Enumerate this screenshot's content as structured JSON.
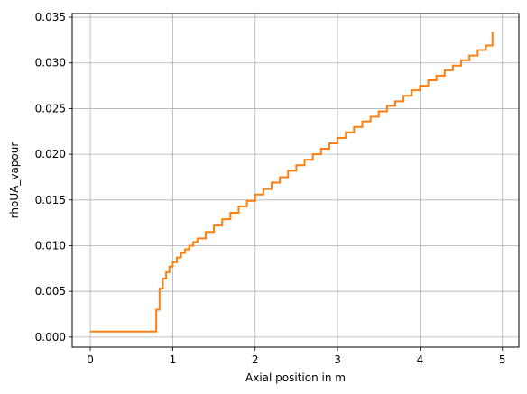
{
  "chart_data": {
    "type": "line",
    "title": "",
    "xlabel": "Axial position in m",
    "ylabel": "rhoUA_vapour",
    "xlim": [
      -0.22,
      5.2
    ],
    "ylim": [
      -0.0011,
      0.0354
    ],
    "xticks": [
      0,
      1,
      2,
      3,
      4,
      5
    ],
    "xtick_labels": [
      "0",
      "1",
      "2",
      "3",
      "4",
      "5"
    ],
    "yticks": [
      0.0,
      0.005,
      0.01,
      0.015,
      0.02,
      0.025,
      0.03,
      0.035
    ],
    "ytick_labels": [
      "0.000",
      "0.005",
      "0.010",
      "0.015",
      "0.020",
      "0.025",
      "0.030",
      "0.035"
    ],
    "grid": true,
    "line_style": "step",
    "line_color": "#ff7f0e",
    "series": [
      {
        "x": [
          0.0,
          0.8,
          0.84,
          0.88,
          0.92,
          0.96,
          1.0,
          1.05,
          1.1,
          1.15,
          1.2,
          1.25,
          1.3,
          1.4,
          1.5,
          1.6,
          1.7,
          1.8,
          1.9,
          2.0,
          2.1,
          2.2,
          2.3,
          2.4,
          2.5,
          2.6,
          2.7,
          2.8,
          2.9,
          3.0,
          3.1,
          3.2,
          3.3,
          3.4,
          3.5,
          3.6,
          3.7,
          3.8,
          3.9,
          4.0,
          4.1,
          4.2,
          4.3,
          4.4,
          4.5,
          4.6,
          4.7,
          4.8,
          4.88
        ],
        "y": [
          0.0006,
          0.003,
          0.0053,
          0.0064,
          0.0071,
          0.0077,
          0.0082,
          0.0087,
          0.0092,
          0.0096,
          0.01,
          0.0104,
          0.0108,
          0.0115,
          0.0122,
          0.0129,
          0.0136,
          0.0143,
          0.0149,
          0.0156,
          0.0162,
          0.0169,
          0.0175,
          0.0182,
          0.0188,
          0.0194,
          0.02,
          0.0206,
          0.0212,
          0.0218,
          0.0224,
          0.023,
          0.0236,
          0.0241,
          0.0247,
          0.0253,
          0.0258,
          0.0264,
          0.027,
          0.0275,
          0.0281,
          0.0286,
          0.0292,
          0.0297,
          0.0303,
          0.0308,
          0.0314,
          0.0319,
          0.0334
        ]
      }
    ]
  }
}
